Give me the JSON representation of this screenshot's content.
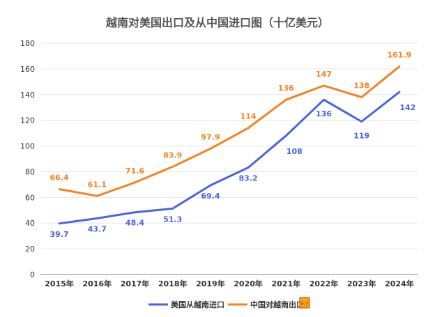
{
  "chart_data": {
    "type": "line",
    "title": "越南对美国出口及从中国进口图（十亿美元）",
    "categories": [
      "2015年",
      "2016年",
      "2017年",
      "2018年",
      "2019年",
      "2020年",
      "2021年",
      "2022年",
      "2023年",
      "2024年"
    ],
    "ylim": [
      0,
      180
    ],
    "yticks": [
      "0",
      "20",
      "40",
      "60",
      "80",
      "100",
      "120",
      "140",
      "160",
      "180"
    ],
    "grid": "horizontal",
    "legend_position": "bottom",
    "series": [
      {
        "name": "美国从越南进口",
        "color": "#4a63e6",
        "values": [
          39.7,
          43.7,
          48.4,
          51.3,
          69.4,
          83.2,
          108,
          136,
          119,
          142
        ],
        "labels": [
          "39.7",
          "43.7",
          "48.4",
          "51.3",
          "69.4",
          "83.2",
          "108",
          "136",
          "119",
          "142"
        ]
      },
      {
        "name": "中国对越南出口",
        "color": "#f5831f",
        "values": [
          66.4,
          61.1,
          71.6,
          83.9,
          97.9,
          114,
          136,
          147,
          138,
          161.9
        ],
        "labels": [
          "66.4",
          "61.1",
          "71.6",
          "83.9",
          "97.9",
          "114",
          "136",
          "147",
          "138",
          "161.9"
        ]
      }
    ]
  },
  "logo": {
    "text": "天下"
  }
}
